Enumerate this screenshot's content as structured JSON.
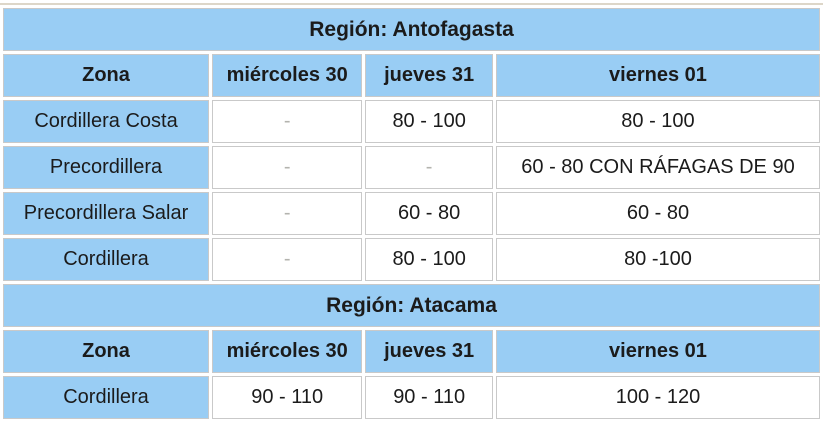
{
  "colors": {
    "header_blue": "#99cdf4",
    "cell_border": "#c9c9c9",
    "outer_top_border": "#ddd6c8",
    "text": "#1b1b1b",
    "empty_dash": "#b3b3ae",
    "cell_background": "#ffffff"
  },
  "tables": [
    {
      "region_title": "Región: Antofagasta",
      "columns": [
        "Zona",
        "miércoles 30",
        "jueves 31",
        "viernes 01"
      ],
      "rows": [
        {
          "zona": "Cordillera Costa",
          "values": [
            "-",
            "80 - 100",
            "80 - 100"
          ]
        },
        {
          "zona": "Precordillera",
          "values": [
            "-",
            "-",
            "60 - 80 CON RÁFAGAS DE 90"
          ]
        },
        {
          "zona": "Precordillera Salar",
          "values": [
            "-",
            "60 - 80",
            "60 - 80"
          ]
        },
        {
          "zona": "Cordillera",
          "values": [
            "-",
            "80 - 100",
            "80 -100"
          ]
        }
      ]
    },
    {
      "region_title": "Región: Atacama",
      "columns": [
        "Zona",
        "miércoles 30",
        "jueves 31",
        "viernes 01"
      ],
      "rows": [
        {
          "zona": "Cordillera",
          "values": [
            "90 - 110",
            "90 - 110",
            "100 - 120"
          ]
        }
      ]
    }
  ],
  "chart_data": [
    {
      "type": "table",
      "title": "Región: Antofagasta",
      "columns": [
        "Zona",
        "miércoles 30",
        "jueves 31",
        "viernes 01"
      ],
      "rows": [
        [
          "Cordillera Costa",
          "-",
          "80 - 100",
          "80 - 100"
        ],
        [
          "Precordillera",
          "-",
          "-",
          "60 - 80 CON RÁFAGAS DE 90"
        ],
        [
          "Precordillera Salar",
          "-",
          "60 - 80",
          "60 - 80"
        ],
        [
          "Cordillera",
          "-",
          "80 - 100",
          "80 -100"
        ]
      ]
    },
    {
      "type": "table",
      "title": "Región: Atacama",
      "columns": [
        "Zona",
        "miércoles 30",
        "jueves 31",
        "viernes 01"
      ],
      "rows": [
        [
          "Cordillera",
          "90 - 110",
          "90 - 110",
          "100 - 120"
        ]
      ]
    }
  ]
}
